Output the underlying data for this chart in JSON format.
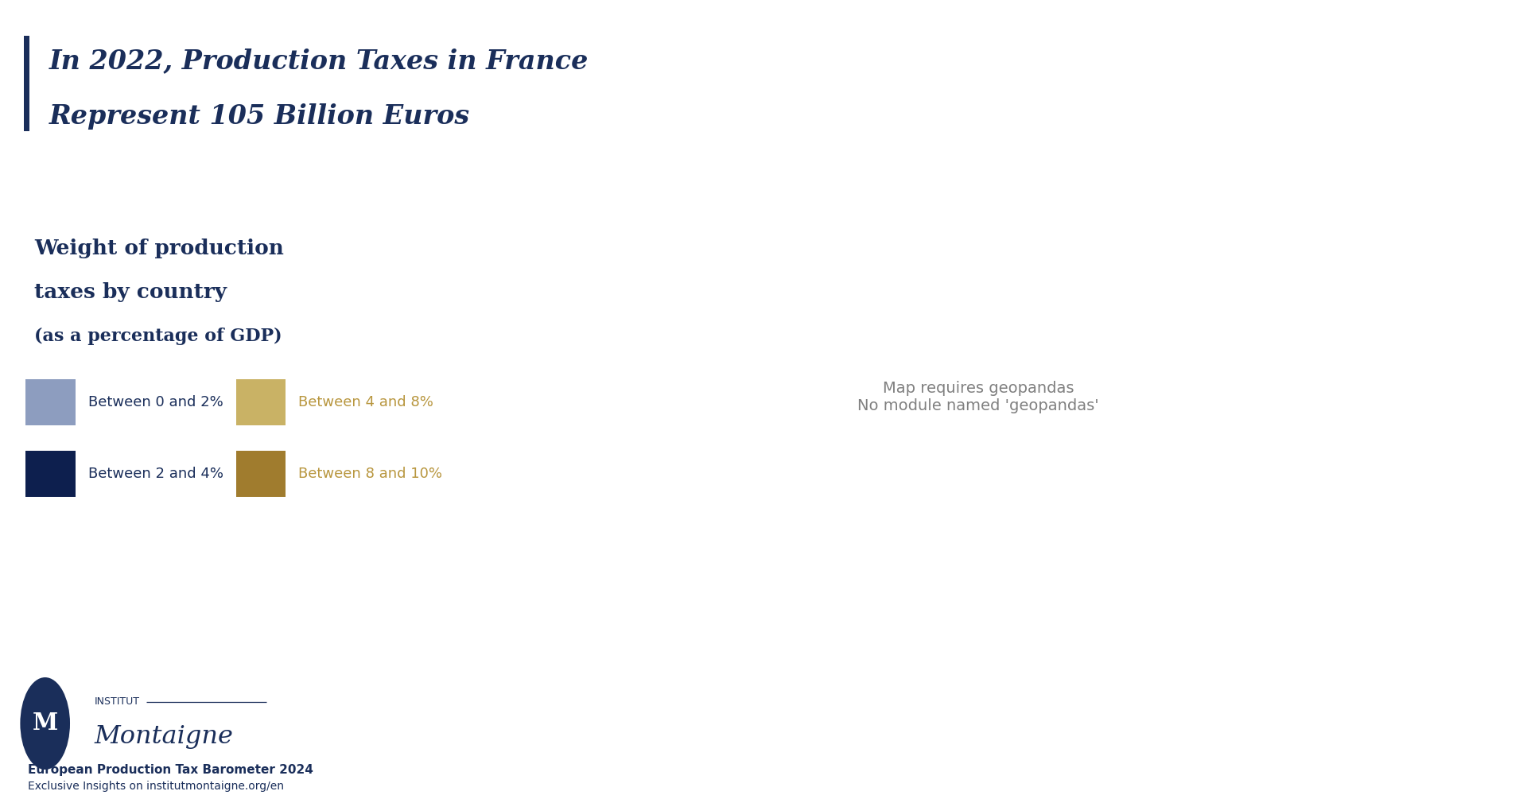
{
  "title_line1": "In 2022, Production Taxes in France",
  "title_line2": "Represent 105 Billion Euros",
  "subtitle_line1": "Weight of production",
  "subtitle_line2": "taxes by country",
  "subtitle_line3": "(as a percentage of GDP)",
  "legend": [
    {
      "label": "Between 0 and 2%",
      "color": "#8d9dbf",
      "text_color": "#1a2e5a"
    },
    {
      "label": "Between 2 and 4%",
      "color": "#0d1f4e",
      "text_color": "#1a2e5a"
    },
    {
      "label": "Between 4 and 8%",
      "color": "#c9b265",
      "text_color": "#b8963e"
    },
    {
      "label": "Between 8 and 10%",
      "color": "#a07c2e",
      "text_color": "#b8963e"
    }
  ],
  "background_color": "#ffffff",
  "title_color": "#1a2e5a",
  "footer_line1": "European Production Tax Barometer 2024",
  "footer_line2": "Exclusive Insights on institutmontaigne.org/en",
  "accent_bar_color": "#1a2e5a",
  "color_0_2": "#8d9dbf",
  "color_2_4": "#0d1f4e",
  "color_2_4_med": "#5c6f8a",
  "color_4_8": "#c9b265",
  "color_8_10": "#a07c2e",
  "map_xlim": [
    -11,
    33
  ],
  "map_ylim": [
    34,
    72
  ],
  "country_colors": {
    "France": "#c9b265",
    "Sweden": "#c9b265",
    "Luxembourg": "#c9b265",
    "Austria": "#c9b265",
    "Germany": "#5c6f8a",
    "Netherlands": "#5c6f8a",
    "Belgium": "#5c6f8a",
    "Czech Republic": "#5c6f8a",
    "Czechia": "#5c6f8a",
    "Slovakia": "#5c6f8a",
    "Poland": "#0d1f4e",
    "Spain": "#0d1f4e",
    "Italy": "#0d1f4e",
    "Denmark": "#0d1f4e",
    "Hungary": "#0d1f4e",
    "Romania": "#0d1f4e",
    "Bulgaria": "#0d1f4e",
    "Croatia": "#0d1f4e",
    "Slovenia": "#0d1f4e",
    "Greece": "#0d1f4e",
    "Portugal": "#8d9dbf",
    "Finland": "#8d9dbf",
    "Norway": "#8d9dbf",
    "United Kingdom": "#8d9dbf",
    "Ireland": "#8d9dbf",
    "Switzerland": "#8d9dbf",
    "Serbia": "#8d9dbf",
    "Estonia": "#8d9dbf",
    "Latvia": "#8d9dbf",
    "Lithuania": "#8d9dbf",
    "Bosnia and Herz.": "#8d9dbf",
    "Albania": "#8d9dbf",
    "North Macedonia": "#8d9dbf",
    "Moldova": "#8d9dbf",
    "Belarus": "#8d9dbf",
    "Ukraine": "#8d9dbf",
    "Montenegro": "#8d9dbf",
    "Kosovo": "#8d9dbf",
    "Iceland": "#8d9dbf"
  }
}
